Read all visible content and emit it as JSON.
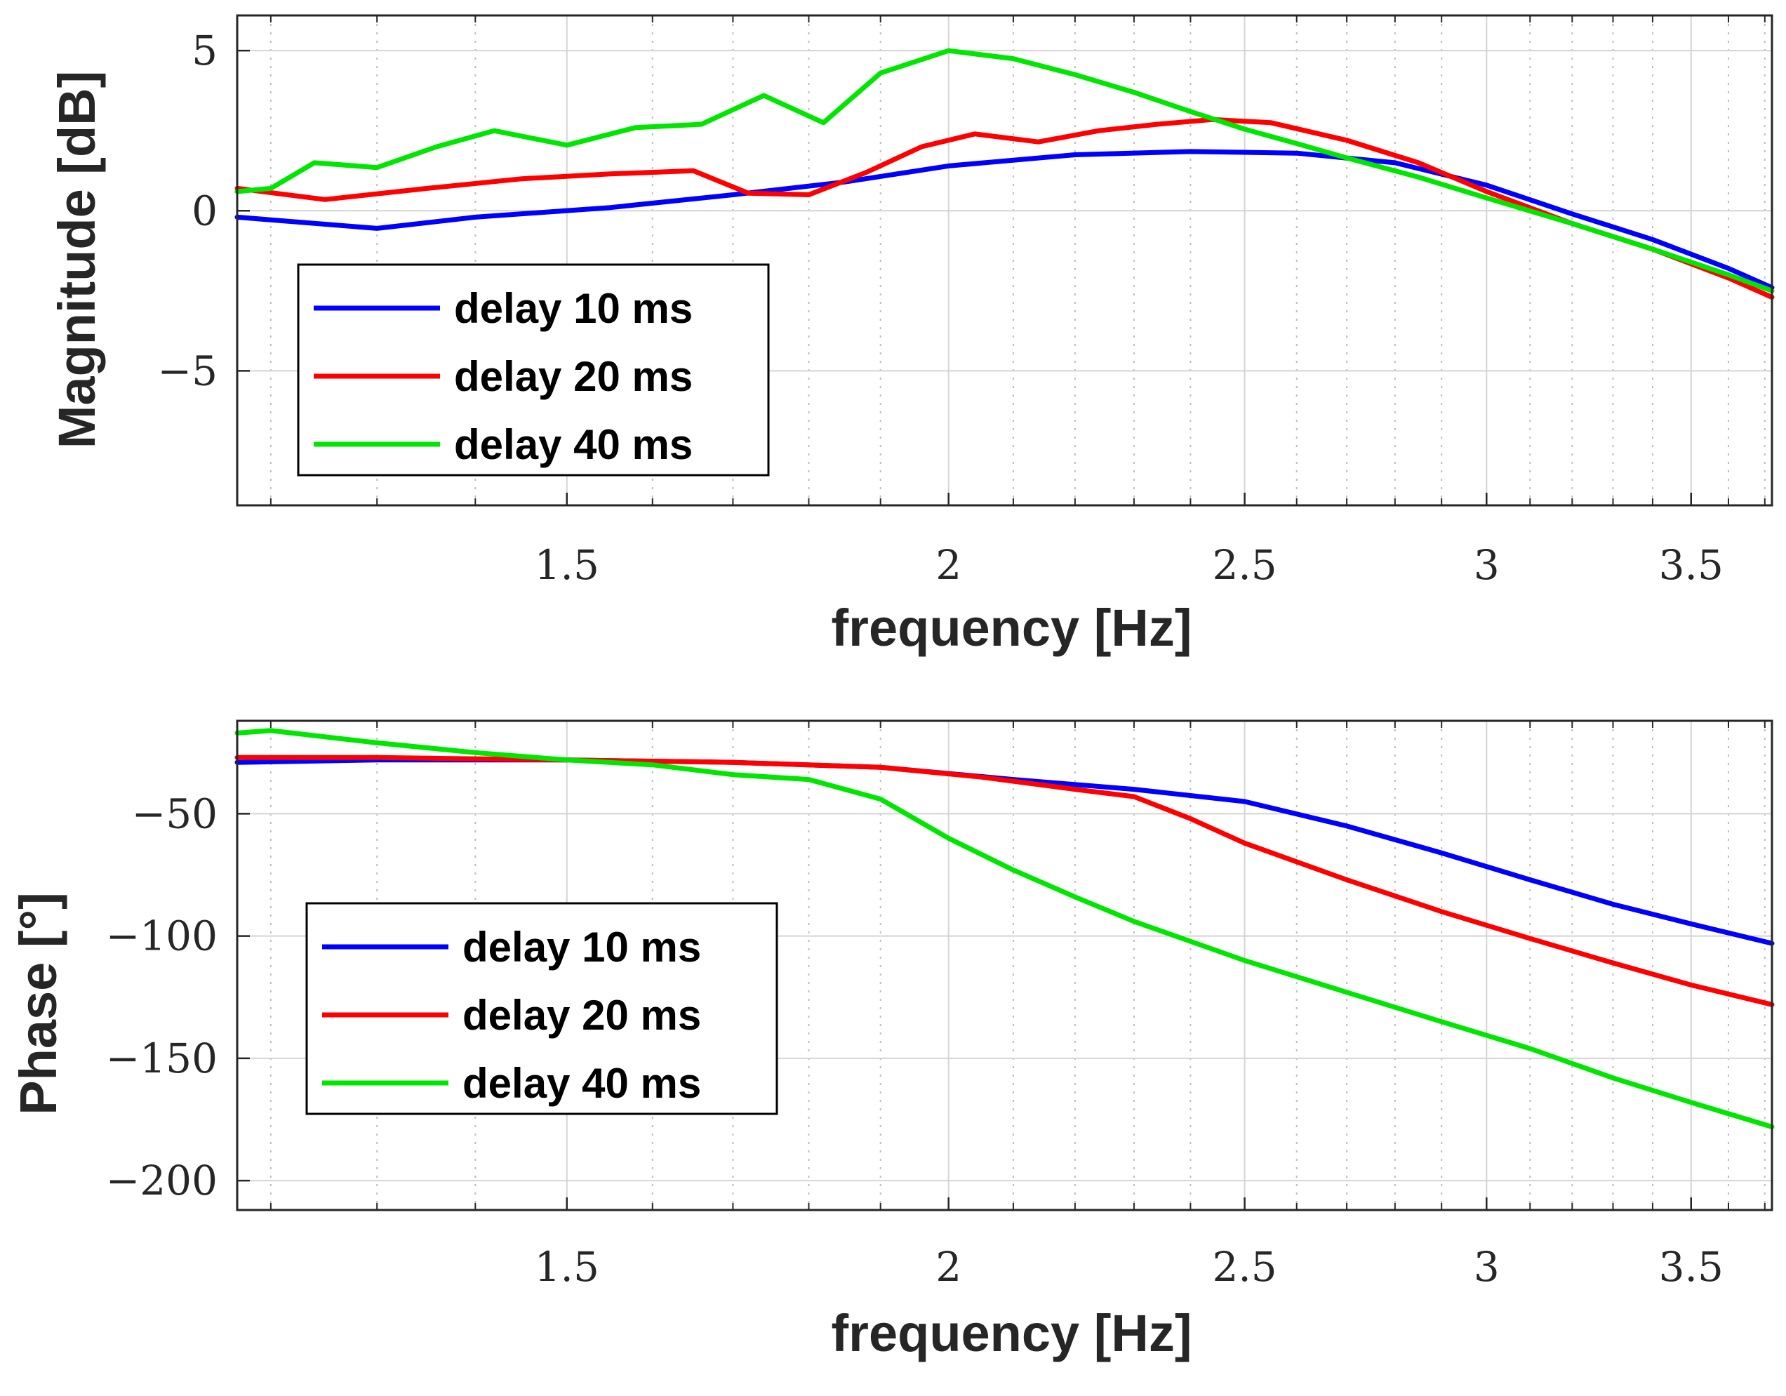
{
  "chart_data": [
    {
      "type": "line",
      "ylabel": "Magnitude [dB]",
      "xlabel": "frequency [Hz]",
      "xscale": "log",
      "xlim": [
        1.17,
        3.72
      ],
      "ylim": [
        -9.2,
        6.1
      ],
      "x_ticks": [
        1.5,
        2,
        2.5,
        3,
        3.5
      ],
      "x_tick_labels": [
        "1.5",
        "2",
        "2.5",
        "3",
        "3.5"
      ],
      "y_ticks": [
        5,
        0,
        -5
      ],
      "y_tick_labels": [
        "5",
        "0",
        "−5"
      ],
      "grid": true,
      "legend_position": "lower-left",
      "series": [
        {
          "name": "delay 10 ms",
          "color": "#0000ff",
          "x": [
            1.17,
            1.3,
            1.4,
            1.55,
            1.7,
            1.85,
            2.0,
            2.2,
            2.4,
            2.6,
            2.8,
            3.0,
            3.2,
            3.4,
            3.6,
            3.72
          ],
          "y": [
            -0.2,
            -0.55,
            -0.2,
            0.1,
            0.5,
            0.9,
            1.4,
            1.75,
            1.85,
            1.8,
            1.5,
            0.8,
            -0.1,
            -0.9,
            -1.8,
            -2.4
          ]
        },
        {
          "name": "delay 20 ms",
          "color": "#ff0000",
          "x": [
            1.17,
            1.25,
            1.35,
            1.45,
            1.55,
            1.65,
            1.72,
            1.8,
            1.88,
            1.96,
            2.04,
            2.14,
            2.24,
            2.34,
            2.44,
            2.55,
            2.7,
            2.85,
            3.0,
            3.2,
            3.4,
            3.6,
            3.72
          ],
          "y": [
            0.7,
            0.35,
            0.7,
            1.0,
            1.15,
            1.25,
            0.55,
            0.5,
            1.2,
            2.0,
            2.4,
            2.15,
            2.5,
            2.7,
            2.85,
            2.75,
            2.2,
            1.5,
            0.6,
            -0.4,
            -1.2,
            -2.1,
            -2.7
          ]
        },
        {
          "name": "delay 40 ms",
          "color": "#00e600",
          "x": [
            1.17,
            1.2,
            1.24,
            1.3,
            1.36,
            1.42,
            1.5,
            1.58,
            1.66,
            1.74,
            1.82,
            1.9,
            2.0,
            2.1,
            2.2,
            2.3,
            2.4,
            2.5,
            2.6,
            2.7,
            2.85,
            3.0,
            3.2,
            3.4,
            3.6,
            3.72
          ],
          "y": [
            0.6,
            0.7,
            1.5,
            1.35,
            2.0,
            2.5,
            2.05,
            2.6,
            2.7,
            3.6,
            2.75,
            4.3,
            5.0,
            4.75,
            4.25,
            3.7,
            3.1,
            2.55,
            2.1,
            1.65,
            1.05,
            0.4,
            -0.4,
            -1.2,
            -2.0,
            -2.5
          ]
        }
      ]
    },
    {
      "type": "line",
      "ylabel": "Phase [°]",
      "xlabel": "frequency [Hz]",
      "xscale": "log",
      "xlim": [
        1.17,
        3.72
      ],
      "ylim": [
        -212,
        -12
      ],
      "x_ticks": [
        1.5,
        2,
        2.5,
        3,
        3.5
      ],
      "x_tick_labels": [
        "1.5",
        "2",
        "2.5",
        "3",
        "3.5"
      ],
      "y_ticks": [
        -50,
        -100,
        -150,
        -200
      ],
      "y_tick_labels": [
        "−50",
        "−100",
        "−150",
        "−200"
      ],
      "grid": true,
      "legend_position": "lower-left",
      "series": [
        {
          "name": "delay 10 ms",
          "color": "#0000ff",
          "x": [
            1.17,
            1.3,
            1.5,
            1.7,
            1.9,
            2.1,
            2.3,
            2.5,
            2.7,
            2.9,
            3.1,
            3.3,
            3.5,
            3.72
          ],
          "y": [
            -29,
            -28,
            -28,
            -29,
            -31,
            -36,
            -40,
            -45,
            -55,
            -66,
            -77,
            -87,
            -95,
            -103
          ]
        },
        {
          "name": "delay 20 ms",
          "color": "#ff0000",
          "x": [
            1.17,
            1.3,
            1.5,
            1.7,
            1.9,
            2.05,
            2.2,
            2.3,
            2.4,
            2.5,
            2.7,
            2.9,
            3.1,
            3.3,
            3.5,
            3.72
          ],
          "y": [
            -27,
            -27,
            -28,
            -29,
            -31,
            -35,
            -40,
            -43,
            -52,
            -62,
            -77,
            -90,
            -101,
            -111,
            -120,
            -128
          ]
        },
        {
          "name": "delay 40 ms",
          "color": "#00e600",
          "x": [
            1.17,
            1.2,
            1.3,
            1.4,
            1.5,
            1.6,
            1.7,
            1.8,
            1.9,
            2.0,
            2.1,
            2.2,
            2.3,
            2.5,
            2.7,
            2.9,
            3.1,
            3.3,
            3.5,
            3.72
          ],
          "y": [
            -17,
            -16,
            -21,
            -25,
            -28,
            -30,
            -34,
            -36,
            -44,
            -60,
            -73,
            -84,
            -94,
            -110,
            -123,
            -135,
            -146,
            -158,
            -168,
            -178
          ]
        }
      ]
    }
  ]
}
